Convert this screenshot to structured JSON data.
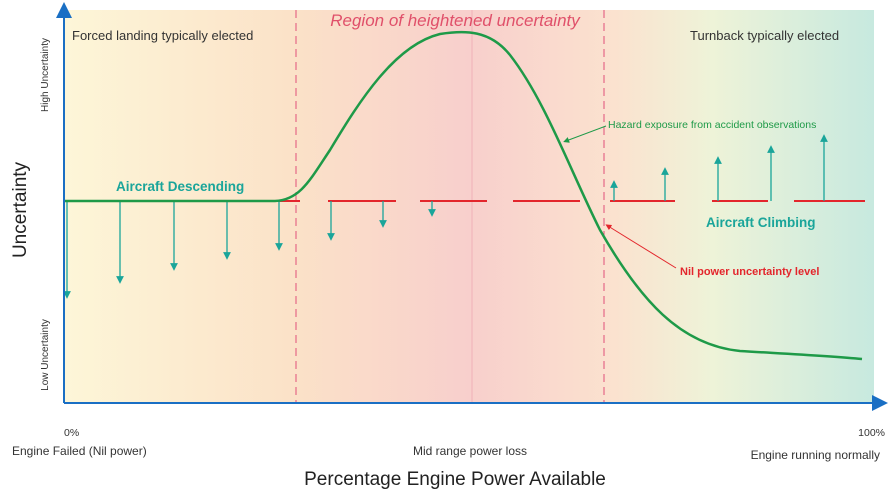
{
  "title": "Region of heightened uncertainty",
  "zones": {
    "left": "Forced landing typically elected",
    "right": "Turnback typically elected"
  },
  "labels": {
    "descending": "Aircraft Descending",
    "climbing": "Aircraft Climbing",
    "hazard": "Hazard exposure from accident observations",
    "nil_power": "Nil power uncertainty level"
  },
  "y_axis": {
    "title": "Uncertainty",
    "high": "High Uncertainty",
    "low": "Low Uncertainty"
  },
  "x_axis": {
    "title": "Percentage Engine Power Available",
    "start": "0%",
    "start_label": "Engine Failed (Nil power)",
    "mid_label": "Mid range power loss",
    "end": "100%",
    "end_label": "Engine running normally"
  }
}
